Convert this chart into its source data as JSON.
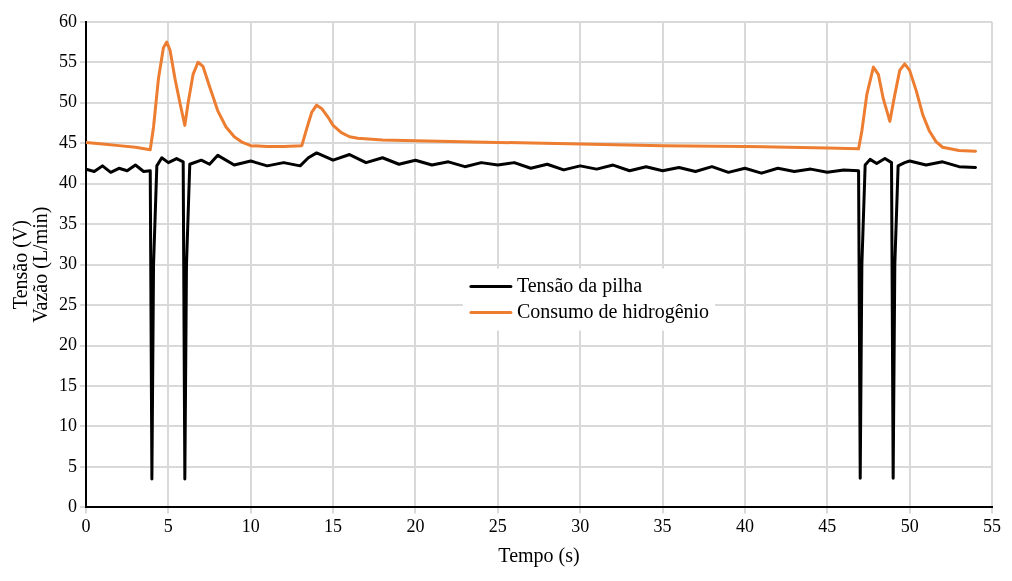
{
  "chart_data": {
    "type": "line",
    "xlabel": "Tempo (s)",
    "ylabel": "Tensão (V)\nVazão (L/min)",
    "xlim": [
      0,
      55
    ],
    "ylim": [
      0,
      60
    ],
    "xticks": [
      0,
      5,
      10,
      15,
      20,
      25,
      30,
      35,
      40,
      45,
      50,
      55
    ],
    "yticks": [
      0,
      5,
      10,
      15,
      20,
      25,
      30,
      35,
      40,
      45,
      50,
      55,
      60
    ],
    "grid": true,
    "legend": "center",
    "marker": "none",
    "line_style": "solid",
    "series": [
      {
        "name": "Tensão da pilha",
        "color": "#000000",
        "x": [
          0,
          0.5,
          1,
          1.5,
          2,
          2.5,
          3,
          3.5,
          3.9,
          4.0,
          4.1,
          4.3,
          4.6,
          5,
          5.5,
          5.9,
          6.0,
          6.1,
          6.3,
          7,
          7.5,
          8,
          9,
          10,
          11,
          12,
          13,
          13.5,
          14,
          15,
          16,
          17,
          18,
          19,
          20,
          21,
          22,
          23,
          24,
          25,
          26,
          27,
          28,
          29,
          30,
          31,
          32,
          33,
          34,
          35,
          36,
          37,
          38,
          39,
          40,
          41,
          42,
          43,
          44,
          45,
          46,
          46.9,
          47.0,
          47.1,
          47.3,
          47.6,
          48,
          48.5,
          48.9,
          49.0,
          49.1,
          49.3,
          49.7,
          50,
          51,
          52,
          53,
          54
        ],
        "values": [
          41.8,
          41.5,
          42.2,
          41.4,
          41.9,
          41.6,
          42.3,
          41.5,
          41.6,
          3.5,
          30,
          42.2,
          43.2,
          42.6,
          43.1,
          42.7,
          3.5,
          30,
          42.4,
          42.9,
          42.4,
          43.5,
          42.3,
          42.8,
          42.2,
          42.6,
          42.2,
          43.2,
          43.8,
          42.9,
          43.6,
          42.6,
          43.2,
          42.4,
          42.9,
          42.3,
          42.7,
          42.1,
          42.6,
          42.3,
          42.6,
          41.9,
          42.4,
          41.7,
          42.2,
          41.8,
          42.3,
          41.6,
          42.1,
          41.6,
          42.0,
          41.5,
          42.1,
          41.4,
          41.9,
          41.3,
          41.9,
          41.5,
          41.8,
          41.4,
          41.7,
          41.6,
          3.6,
          30,
          42.3,
          43.0,
          42.5,
          43.1,
          42.6,
          3.6,
          30,
          42.2,
          42.6,
          42.8,
          42.3,
          42.7,
          42.1,
          42.0
        ]
      },
      {
        "name": "Consumo de hidrogênio",
        "color": "#ed7d31",
        "x": [
          0,
          1,
          2,
          3,
          3.9,
          4.1,
          4.4,
          4.7,
          4.9,
          5.1,
          5.4,
          5.7,
          6.0,
          6.2,
          6.5,
          6.8,
          7.1,
          7.5,
          8,
          8.5,
          9,
          9.5,
          10,
          11,
          12,
          13.1,
          13.4,
          13.7,
          14.0,
          14.3,
          14.7,
          15,
          15.5,
          16,
          16.5,
          18,
          20,
          25,
          30,
          35,
          40,
          45,
          46.9,
          47.1,
          47.4,
          47.8,
          48.1,
          48.4,
          48.8,
          49.1,
          49.4,
          49.7,
          50,
          50.4,
          50.8,
          51.2,
          51.6,
          52,
          53,
          54
        ],
        "values": [
          45.1,
          44.9,
          44.7,
          44.5,
          44.2,
          47,
          53,
          56.8,
          57.5,
          56.5,
          53,
          50,
          47.2,
          50,
          53.5,
          55,
          54.5,
          52,
          49,
          47,
          45.8,
          45.1,
          44.7,
          44.6,
          44.6,
          44.7,
          46.8,
          48.8,
          49.7,
          49.3,
          48.2,
          47.2,
          46.3,
          45.8,
          45.6,
          45.4,
          45.3,
          45.1,
          44.9,
          44.7,
          44.6,
          44.4,
          44.3,
          46.5,
          51,
          54.4,
          53.5,
          50.5,
          47.7,
          51,
          54,
          54.8,
          54,
          51.5,
          48.5,
          46.5,
          45.2,
          44.5,
          44.1,
          44.0
        ]
      }
    ]
  }
}
